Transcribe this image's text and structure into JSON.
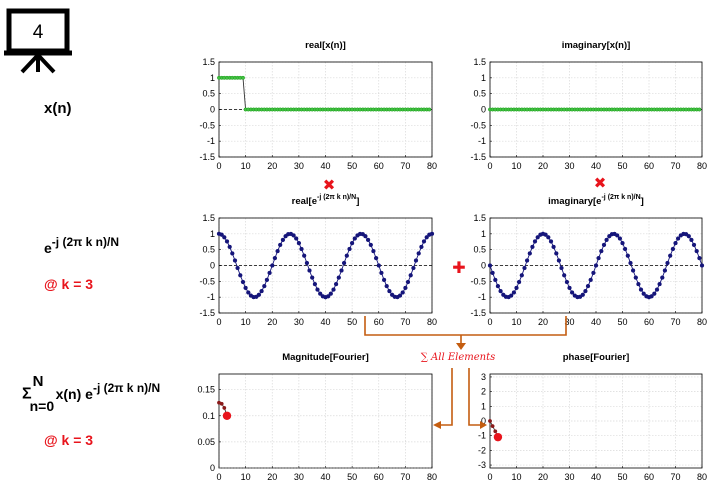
{
  "slide_number": "4",
  "colors": {
    "accent_red": "#e8141c",
    "arrow_orange": "#c45d10",
    "signal_green": "#19a019",
    "marker_navy": "#15157a",
    "fourier_red": "#e8141c",
    "grid": "#d9d9d9"
  },
  "labels": {
    "xn": "x(n)",
    "exp_base": "e",
    "exp_power": "-j (2π k n)/N",
    "at_k": "@ k = 3",
    "sum_sigma": "Σ",
    "sum_upper": "N",
    "sum_lower": "n=0",
    "sum_body": "x(n) e",
    "sum_power": "-j (2π k n)/N",
    "at_k2": "@ k = 3"
  },
  "operators": {
    "multiply_symbol": "✖",
    "plus_symbol": "✚",
    "sum_label": "∑ All Elements"
  },
  "chart_data": [
    {
      "id": "real_x",
      "type": "line",
      "title": "real[x(n)]",
      "xlim": [
        0,
        80
      ],
      "ylim": [
        -1.5,
        1.5
      ],
      "xticks": [
        "0",
        "10",
        "20",
        "30",
        "40",
        "50",
        "60",
        "70",
        "80"
      ],
      "yticks": [
        "1.5",
        "1",
        "0.5",
        "0",
        "-0.5",
        "-1",
        "-1.5"
      ],
      "grid": true,
      "series": [
        {
          "kind": "rect",
          "n_max": 79,
          "high_until": 9,
          "high": 1,
          "low": 0
        }
      ]
    },
    {
      "id": "imag_x",
      "type": "line",
      "title": "imaginary[x(n)]",
      "xlim": [
        0,
        80
      ],
      "ylim": [
        -1.5,
        1.5
      ],
      "xticks": [
        "0",
        "10",
        "20",
        "30",
        "40",
        "50",
        "60",
        "70",
        "80"
      ],
      "yticks": [
        "1.5",
        "1",
        "0.5",
        "0",
        "-0.5",
        "-1",
        "-1.5"
      ],
      "grid": true,
      "series": [
        {
          "kind": "zeros",
          "n_max": 79
        }
      ]
    },
    {
      "id": "real_exp",
      "type": "line",
      "title_base": "real[e",
      "title_power": "-j (2π k n)/N",
      "title_end": "]",
      "xlim": [
        0,
        80
      ],
      "ylim": [
        -1.5,
        1.5
      ],
      "xticks": [
        "0",
        "10",
        "20",
        "30",
        "40",
        "50",
        "60",
        "70",
        "80"
      ],
      "yticks": [
        "1.5",
        "1",
        "0.5",
        "0",
        "-0.5",
        "-1",
        "-1.5"
      ],
      "grid": true,
      "series": [
        {
          "kind": "cos",
          "k": 3,
          "N": 80,
          "n_max": 80
        }
      ]
    },
    {
      "id": "imag_exp",
      "type": "line",
      "title_base": "imaginary[e",
      "title_power": "-j (2π k n)/N",
      "title_end": "]",
      "xlim": [
        0,
        80
      ],
      "ylim": [
        -1.5,
        1.5
      ],
      "xticks": [
        "0",
        "10",
        "20",
        "30",
        "40",
        "50",
        "60",
        "70",
        "80"
      ],
      "yticks": [
        "1.5",
        "1",
        "0.5",
        "0",
        "-0.5",
        "-1",
        "-1.5"
      ],
      "grid": true,
      "series": [
        {
          "kind": "negsin",
          "k": 3,
          "N": 80,
          "n_max": 80
        }
      ]
    },
    {
      "id": "magnitude",
      "type": "line",
      "title": "Magnitude[Fourier]",
      "xlim": [
        0,
        80
      ],
      "ylim": [
        0,
        0.18
      ],
      "xticks": [
        "0",
        "10",
        "20",
        "30",
        "40",
        "50",
        "60",
        "70",
        "80"
      ],
      "yticks": [
        "0.15",
        "0.1",
        "0.05",
        "0"
      ],
      "ytick_values": [
        0.15,
        0.1,
        0.05,
        0
      ],
      "grid": true,
      "series": [
        {
          "kind": "points",
          "x": [
            0,
            1,
            2,
            3
          ],
          "y": [
            0.125,
            0.123,
            0.115,
            0.101
          ]
        },
        {
          "kind": "baseline",
          "n_max": 80
        }
      ],
      "highlight": {
        "x": 3,
        "y": 0.1
      }
    },
    {
      "id": "phase",
      "type": "line",
      "title": "phase[Fourier]",
      "xlim": [
        0,
        80
      ],
      "ylim": [
        -3.2,
        3.2
      ],
      "xticks": [
        "0",
        "10",
        "20",
        "30",
        "40",
        "50",
        "60",
        "70",
        "80"
      ],
      "yticks": [
        "3",
        "2",
        "1",
        "0",
        "-1",
        "-2",
        "-3"
      ],
      "ytick_values": [
        3,
        2,
        1,
        0,
        -1,
        -2,
        -3
      ],
      "grid": true,
      "series": [
        {
          "kind": "points",
          "x": [
            0,
            1,
            2,
            3
          ],
          "y": [
            0,
            -0.35,
            -0.7,
            -1.05
          ]
        }
      ],
      "highlight": {
        "x": 3,
        "y": -1.1
      }
    }
  ]
}
